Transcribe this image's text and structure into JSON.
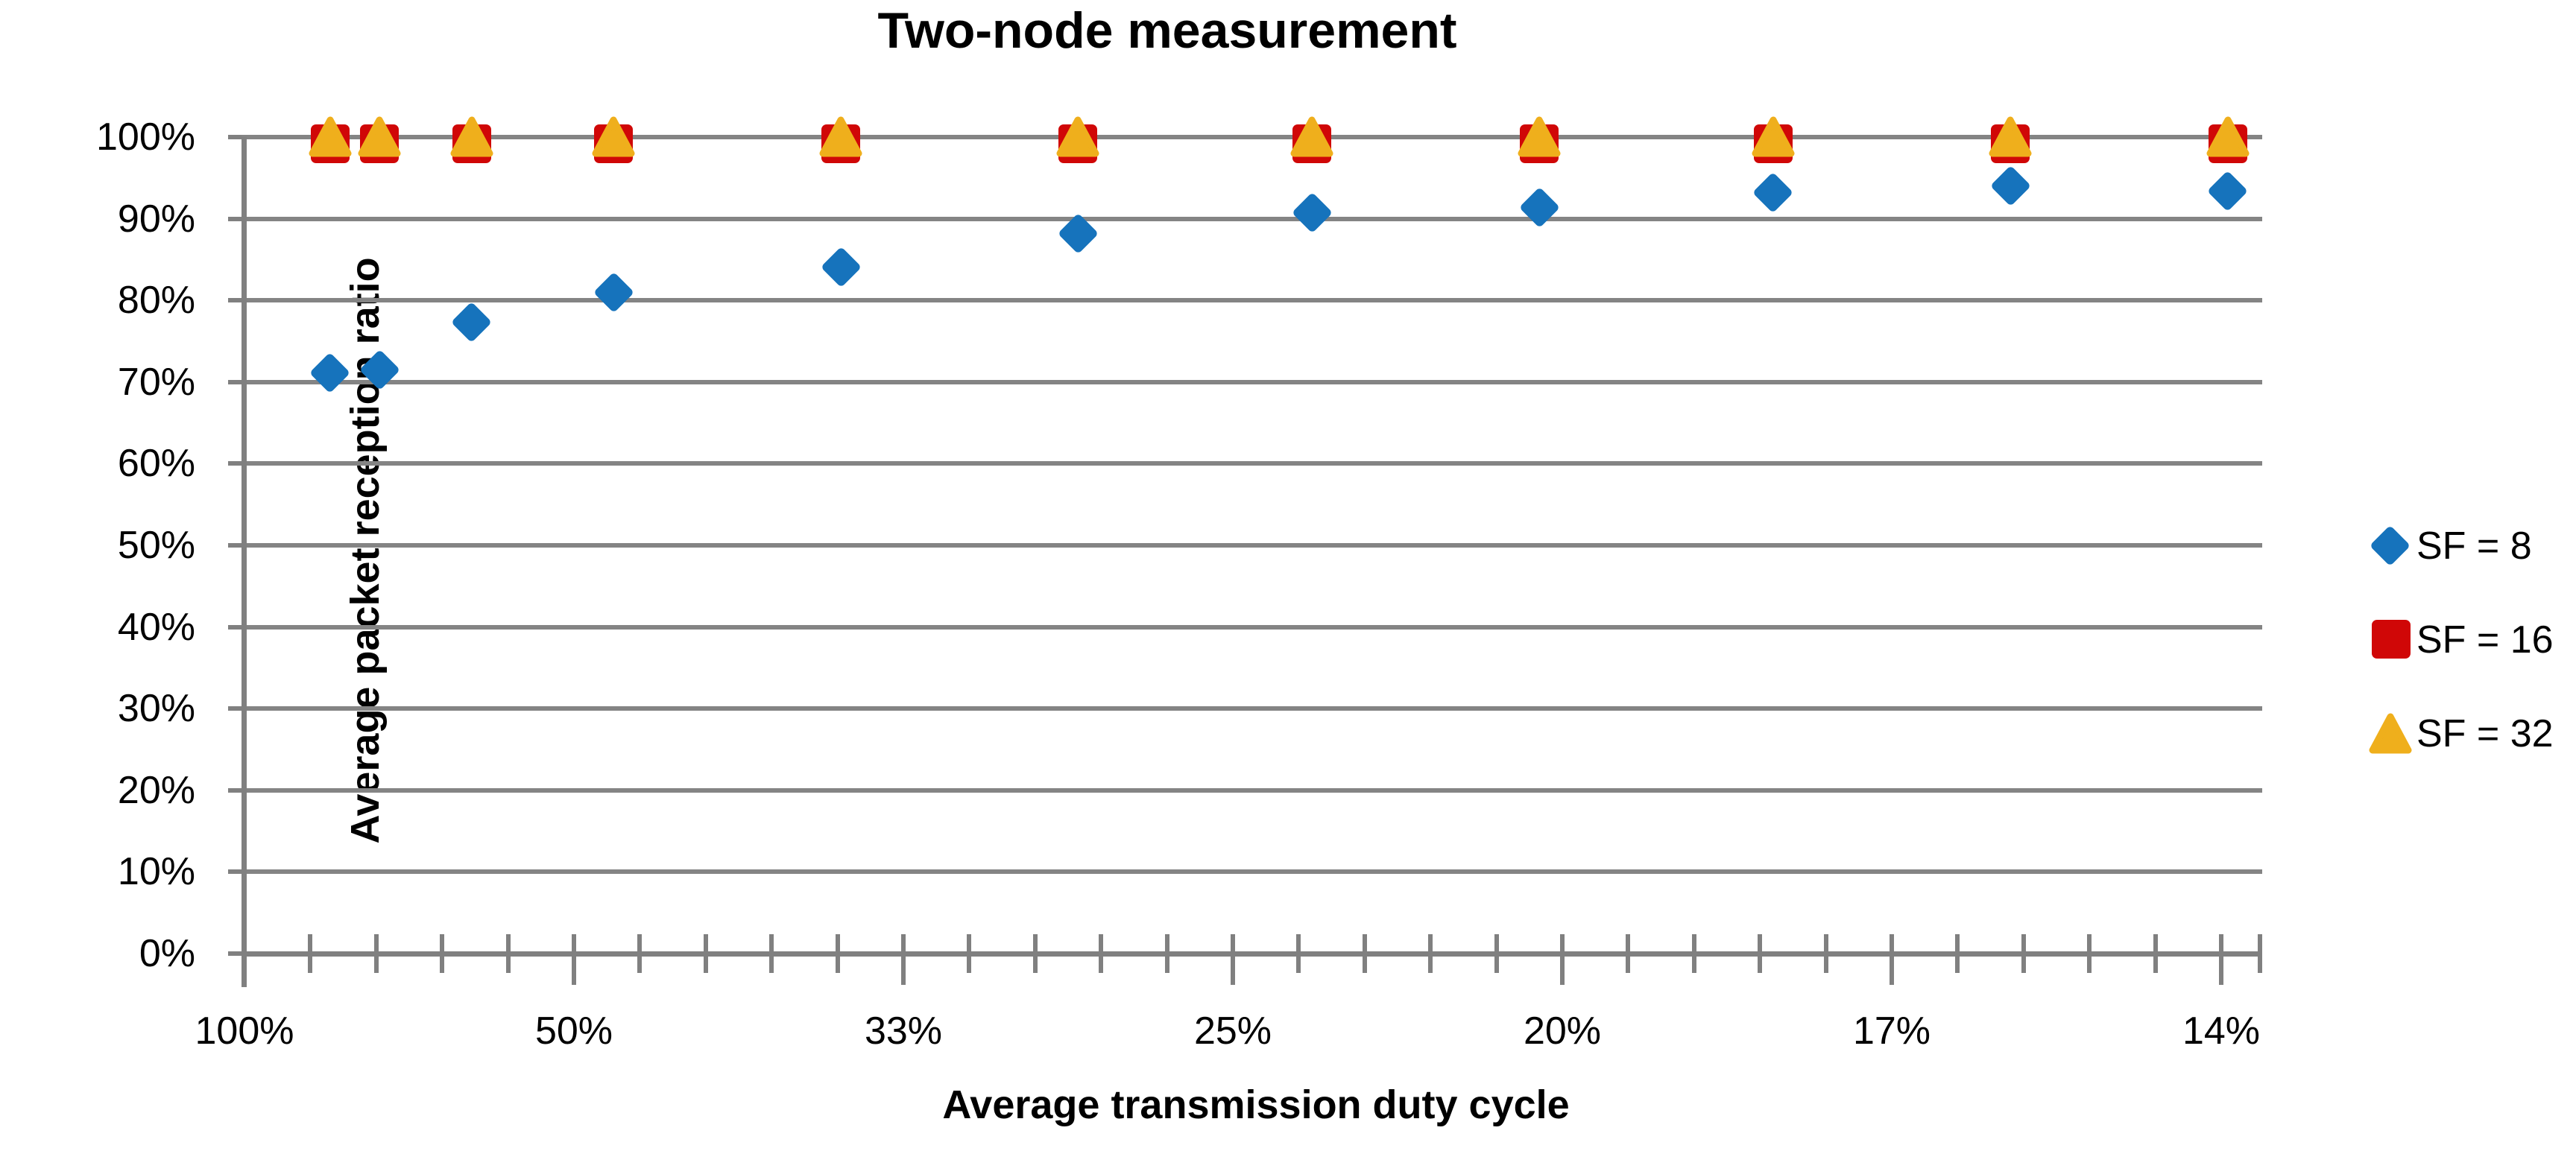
{
  "title": "Two-node measurement",
  "colors": {
    "series_blue": "#1673BC",
    "series_red": "#D00707",
    "series_gold": "#EFAF1C",
    "gridline": "#848484",
    "axis": "#808080",
    "text": "#000000",
    "background": "#FFFFFF"
  },
  "legend": {
    "items": [
      {
        "label": "SF = 8",
        "marker": "diamond",
        "color": "#1673BC"
      },
      {
        "label": "SF = 16",
        "marker": "square",
        "color": "#D00707"
      },
      {
        "label": "SF = 32",
        "marker": "triangle",
        "color": "#EFAF1C"
      }
    ]
  },
  "chart_data": {
    "type": "scatter",
    "title": "Two-node measurement",
    "xlabel": "Average transmission duty cycle",
    "ylabel": "Average packet reception ratio",
    "x_axis": {
      "note": "axis is linear in transmission period (1/duty-cycle); labeled major ticks sit at periods 1..7",
      "tick_labels": [
        "100%",
        "50%",
        "33%",
        "25%",
        "20%",
        "17%",
        "14%"
      ],
      "tick_periods": [
        1,
        2,
        3,
        4,
        5,
        6,
        7
      ],
      "minor_tick_step_period": 0.2,
      "period_range": [
        1,
        7.13
      ]
    },
    "y_axis": {
      "tick_labels": [
        "0%",
        "10%",
        "20%",
        "30%",
        "40%",
        "50%",
        "60%",
        "70%",
        "80%",
        "90%",
        "100%"
      ],
      "tick_values": [
        0,
        10,
        20,
        30,
        40,
        50,
        60,
        70,
        80,
        90,
        100
      ],
      "range": [
        0,
        100
      ],
      "gridlines": true
    },
    "x_periods": [
      1.26,
      1.41,
      1.69,
      2.12,
      2.81,
      3.53,
      4.24,
      4.93,
      5.64,
      6.36,
      7.02
    ],
    "x_duty_cycle_pct": [
      79.4,
      70.9,
      59.2,
      47.2,
      35.6,
      28.3,
      23.6,
      20.3,
      17.7,
      15.7,
      14.2
    ],
    "series": [
      {
        "name": "SF = 8",
        "marker": "diamond",
        "color": "#1673BC",
        "values": [
          71.1,
          71.5,
          77.3,
          81.0,
          84.1,
          88.2,
          90.7,
          91.4,
          93.2,
          94.0,
          93.4
        ]
      },
      {
        "name": "SF = 16",
        "marker": "square",
        "color": "#D00707",
        "values": [
          99.2,
          99.2,
          99.2,
          99.2,
          99.2,
          99.2,
          99.2,
          99.2,
          99.2,
          99.2,
          99.2
        ]
      },
      {
        "name": "SF = 32",
        "marker": "triangle",
        "color": "#EFAF1C",
        "values": [
          100,
          100,
          100,
          100,
          100,
          100,
          100,
          100,
          100,
          100,
          100
        ]
      }
    ],
    "legend_position": "right"
  }
}
